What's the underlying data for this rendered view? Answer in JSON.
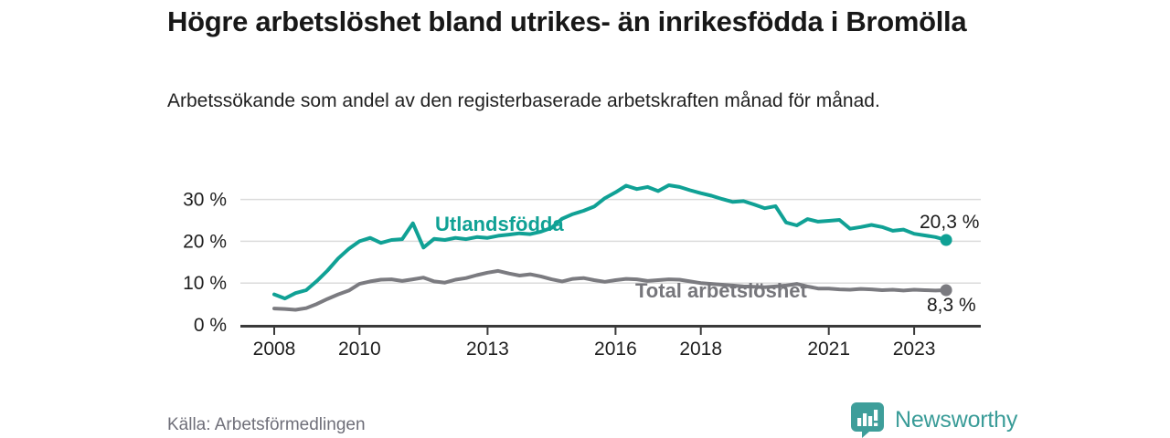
{
  "header": {
    "title": "Högre arbetslöshet bland utrikes- än inrikesfödda i Bromölla",
    "subtitle": "Arbetssökande som andel av den registerbaserade arbetskraften månad för månad."
  },
  "footer": {
    "source": "Källa: Arbetsförmedlingen",
    "brand_name": "Newsworthy"
  },
  "colors": {
    "series_foreign_born": "#10a195",
    "series_total": "#7b7b80",
    "axis": "#3a3a3a",
    "gridline": "#dbdbdb",
    "brand_teal": "#3e9e9a",
    "text_dark": "#1f1f1f"
  },
  "chart_data": {
    "type": "line",
    "title": "Högre arbetslöshet bland utrikes- än inrikesfödda i Bromölla",
    "xlabel": "",
    "ylabel": "Arbetssökande som andel av den registerbaserade arbetskraften",
    "unit": "%",
    "grid": true,
    "legend_position": "inline-labels",
    "ylim": [
      0,
      35
    ],
    "x_range": [
      2008,
      2023.75
    ],
    "y_ticks": [
      0,
      10,
      20,
      30
    ],
    "y_tick_labels": [
      "0 %",
      "10 %",
      "20 %",
      "30 %"
    ],
    "x_ticks": [
      2008,
      2010,
      2013,
      2016,
      2018,
      2021,
      2023
    ],
    "x_tick_labels": [
      "2008",
      "2010",
      "2013",
      "2016",
      "2018",
      "2021",
      "2023"
    ],
    "x": [
      2008.0,
      2008.25,
      2008.5,
      2008.75,
      2009.0,
      2009.25,
      2009.5,
      2009.75,
      2010.0,
      2010.25,
      2010.5,
      2010.75,
      2011.0,
      2011.25,
      2011.5,
      2011.75,
      2012.0,
      2012.25,
      2012.5,
      2012.75,
      2013.0,
      2013.25,
      2013.5,
      2013.75,
      2014.0,
      2014.25,
      2014.5,
      2014.75,
      2015.0,
      2015.25,
      2015.5,
      2015.75,
      2016.0,
      2016.25,
      2016.5,
      2016.75,
      2017.0,
      2017.25,
      2017.5,
      2017.75,
      2018.0,
      2018.25,
      2018.5,
      2018.75,
      2019.0,
      2019.25,
      2019.5,
      2019.75,
      2020.0,
      2020.25,
      2020.5,
      2020.75,
      2021.0,
      2021.25,
      2021.5,
      2021.75,
      2022.0,
      2022.25,
      2022.5,
      2022.75,
      2023.0,
      2023.25,
      2023.5,
      2023.75
    ],
    "series": [
      {
        "name": "Utlandsfödda",
        "color": "#10a195",
        "end_value": 20.3,
        "end_label": "20,3 %",
        "values": [
          7.3,
          6.3,
          7.6,
          8.3,
          10.5,
          13.0,
          15.9,
          18.2,
          20.0,
          20.8,
          19.6,
          20.3,
          20.5,
          24.3,
          18.5,
          20.6,
          20.3,
          20.8,
          20.5,
          21.0,
          20.8,
          21.3,
          21.6,
          21.9,
          21.7,
          22.3,
          23.2,
          25.4,
          26.5,
          27.3,
          28.3,
          30.3,
          31.7,
          33.3,
          32.5,
          33.0,
          32.0,
          33.4,
          33.0,
          32.2,
          31.5,
          30.9,
          30.1,
          29.4,
          29.6,
          28.8,
          27.9,
          28.4,
          24.5,
          23.8,
          25.3,
          24.7,
          24.9,
          25.1,
          23.0,
          23.4,
          23.9,
          23.4,
          22.5,
          22.8,
          21.8,
          21.4,
          21.0,
          20.3
        ]
      },
      {
        "name": "Total arbetslöshet",
        "color": "#7b7b80",
        "end_value": 8.3,
        "end_label": "8,3 %",
        "values": [
          3.9,
          3.8,
          3.6,
          4.0,
          5.0,
          6.2,
          7.3,
          8.2,
          9.8,
          10.4,
          10.8,
          10.9,
          10.5,
          10.9,
          11.3,
          10.4,
          10.1,
          10.8,
          11.2,
          11.9,
          12.5,
          12.9,
          12.3,
          11.8,
          12.1,
          11.6,
          10.9,
          10.4,
          11.0,
          11.2,
          10.7,
          10.3,
          10.7,
          11.0,
          10.9,
          10.5,
          10.7,
          10.9,
          10.8,
          10.4,
          10.0,
          9.8,
          9.6,
          9.4,
          9.2,
          9.1,
          9.0,
          9.2,
          9.4,
          9.8,
          9.2,
          8.7,
          8.7,
          8.5,
          8.4,
          8.6,
          8.5,
          8.3,
          8.4,
          8.2,
          8.4,
          8.3,
          8.2,
          8.3
        ]
      }
    ]
  }
}
